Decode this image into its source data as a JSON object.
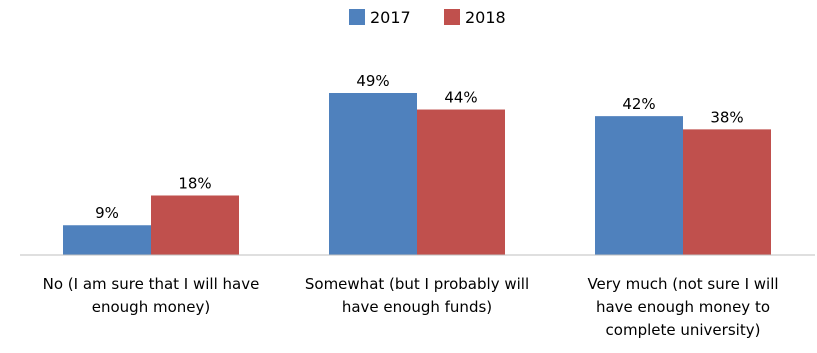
{
  "chart_data": {
    "type": "bar",
    "categories": [
      [
        "No (I am sure that I will have",
        "enough money)"
      ],
      [
        "Somewhat (but I probably will",
        "have enough funds)"
      ],
      [
        "Very much (not sure I will",
        "have enough money to",
        "complete university)"
      ]
    ],
    "series": [
      {
        "name": "2017",
        "color": "#4F81BD",
        "values": [
          9,
          49,
          42
        ],
        "labels": [
          "9%",
          "49%",
          "42%"
        ]
      },
      {
        "name": "2018",
        "color": "#C0504D",
        "values": [
          18,
          44,
          38
        ],
        "labels": [
          "18%",
          "44%",
          "38%"
        ]
      }
    ],
    "value_unit": "%",
    "ylim": [
      0,
      49
    ],
    "grid": false,
    "legend_position": "top-center",
    "title": "",
    "xlabel": "",
    "ylabel": ""
  }
}
